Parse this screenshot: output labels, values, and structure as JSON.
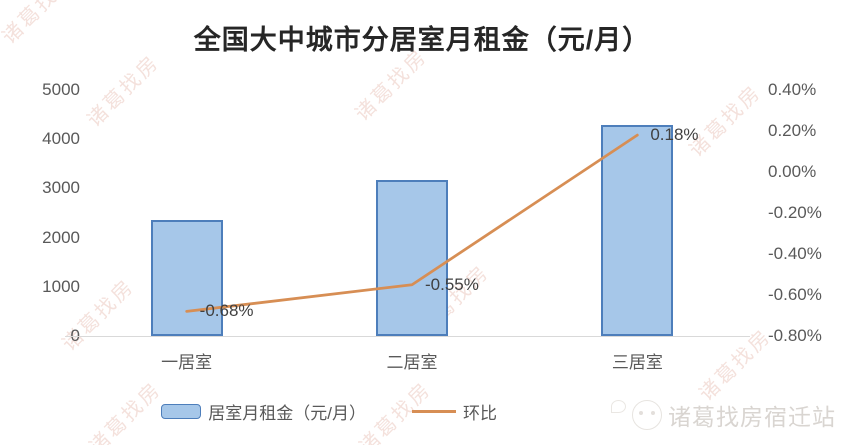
{
  "title": "全国大中城市分居室月租金（元/月）",
  "watermark": {
    "text": "诸葛找房"
  },
  "footer": {
    "brand": "诸葛找房宿迁站"
  },
  "chart_data": {
    "type": "combo-bar-line",
    "title": "全国大中城市分居室月租金（元/月）",
    "categories": [
      "一居室",
      "二居室",
      "三居室"
    ],
    "series": [
      {
        "name": "居室月租金（元/月）",
        "type": "bar",
        "axis": "left",
        "values": [
          2360,
          3170,
          4290
        ]
      },
      {
        "name": "环比",
        "type": "line",
        "axis": "right",
        "values": [
          -0.68,
          -0.55,
          0.18
        ],
        "data_labels": [
          "-0.68%",
          "-0.55%",
          "0.18%"
        ]
      }
    ],
    "left_axis": {
      "min": 0,
      "max": 5000,
      "ticks": [
        "5000",
        "4000",
        "3000",
        "2000",
        "1000",
        "0"
      ]
    },
    "right_axis": {
      "min": -0.8,
      "max": 0.4,
      "ticks": [
        "0.40%",
        "0.20%",
        "0.00%",
        "-0.20%",
        "-0.40%",
        "-0.60%",
        "-0.80%"
      ]
    },
    "grid": false,
    "legend_position": "bottom",
    "colors": {
      "bar_fill": "#A6C7E9",
      "bar_border": "#4D7EBB",
      "line": "#D78E54"
    }
  }
}
